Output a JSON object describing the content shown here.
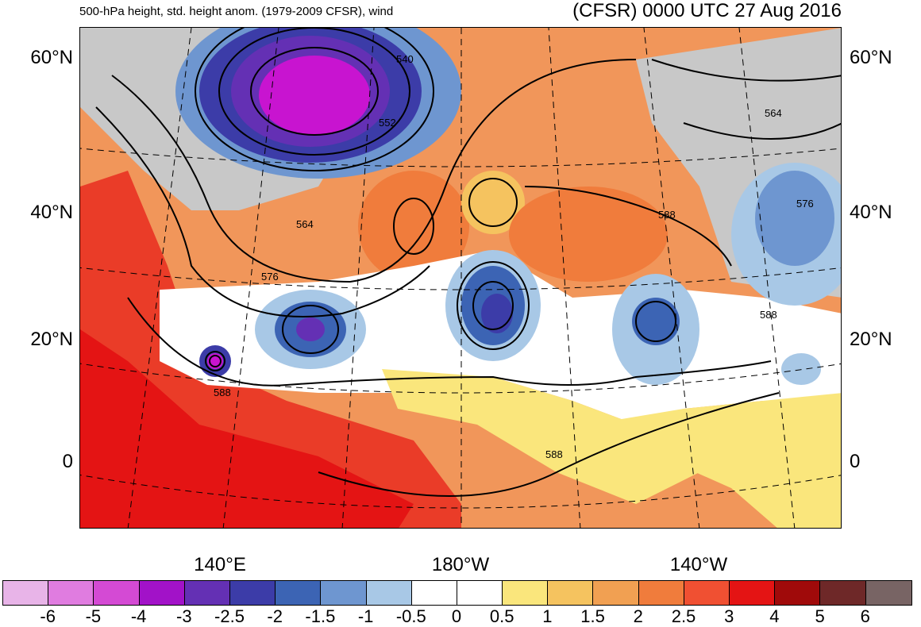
{
  "header": {
    "left_title": "500-hPa height, std. height anom. (1979-2009 CFSR), wind",
    "right_title": "(CFSR) 0000 UTC 27 Aug 2016"
  },
  "map": {
    "lat_labels": [
      "60°N",
      "40°N",
      "20°N",
      "0"
    ],
    "lon_labels": [
      "140°E",
      "180°W",
      "140°W"
    ],
    "contour_labels": [
      "540",
      "552",
      "564",
      "576",
      "588",
      "588",
      "588",
      "564",
      "576",
      "588"
    ],
    "colors": {
      "neutral": "#ffffff",
      "land_gray": "#c8c8c8",
      "warm_base": "#f1965a"
    }
  },
  "colorbar": {
    "labels": [
      "-6",
      "-5",
      "-4",
      "-3",
      "-2.5",
      "-2",
      "-1.5",
      "-1",
      "-0.5",
      "0",
      "0.5",
      "1",
      "1.5",
      "2",
      "2.5",
      "3",
      "4",
      "5",
      "6"
    ],
    "colors": [
      "#e8b4e8",
      "#e07ce0",
      "#d44ad4",
      "#a212c8",
      "#6430b4",
      "#3c3ca8",
      "#3c64b4",
      "#6e96d0",
      "#a8c8e6",
      "#ffffff",
      "#ffffff",
      "#fae67c",
      "#f5c35f",
      "#f1a052",
      "#f07c3c",
      "#f05032",
      "#e41414",
      "#a00a0a",
      "#6e2828",
      "#786464"
    ]
  }
}
